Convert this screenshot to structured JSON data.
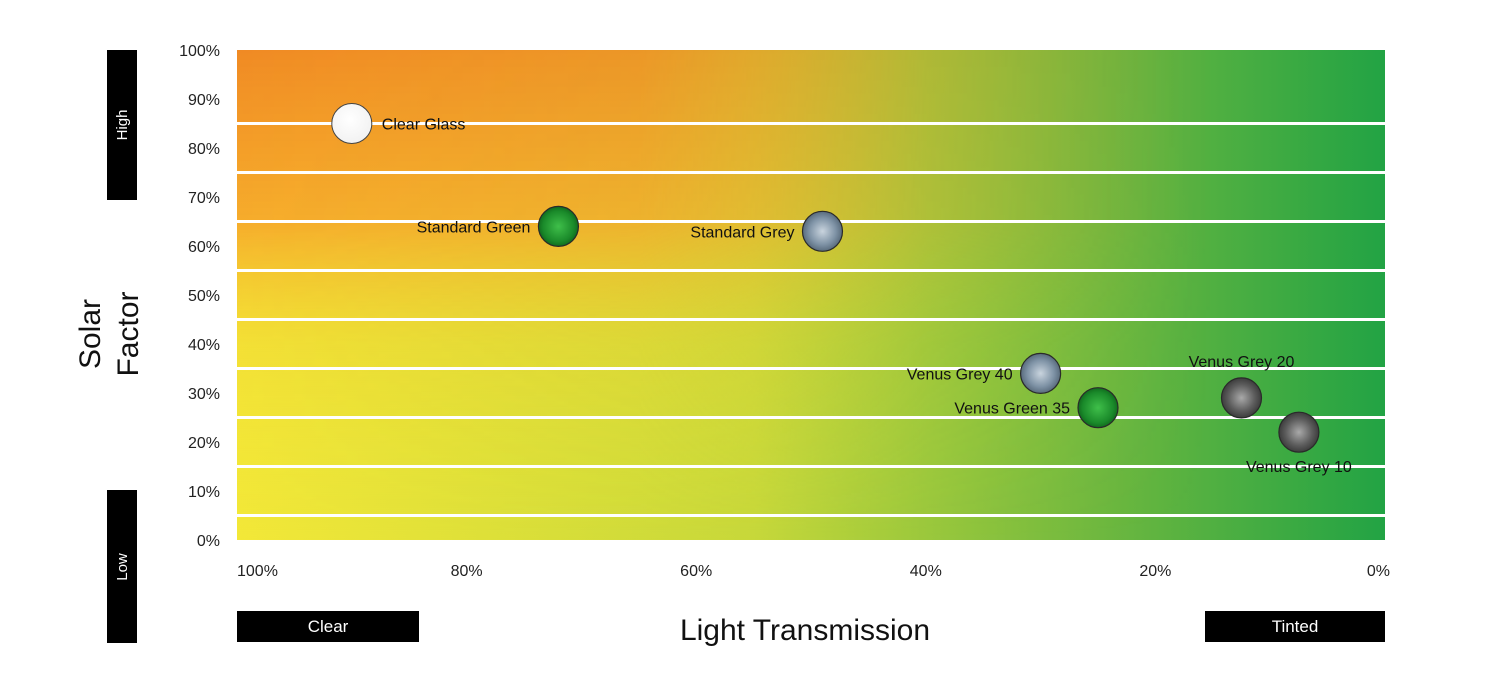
{
  "chart_data": {
    "type": "scatter",
    "xlabel": "Light Transmission",
    "ylabel_line1": "Solar",
    "ylabel_line2": "Factor",
    "x_reversed": true,
    "xlim": [
      0,
      100
    ],
    "ylim": [
      0,
      100
    ],
    "x_ticks": [
      {
        "value": 100,
        "label": "100%"
      },
      {
        "value": 80,
        "label": "80%"
      },
      {
        "value": 60,
        "label": "60%"
      },
      {
        "value": 40,
        "label": "40%"
      },
      {
        "value": 20,
        "label": "20%"
      },
      {
        "value": 0,
        "label": "0%"
      }
    ],
    "y_ticks": [
      {
        "value": 100,
        "label": "100%"
      },
      {
        "value": 90,
        "label": "90%"
      },
      {
        "value": 80,
        "label": "80%"
      },
      {
        "value": 70,
        "label": "70%"
      },
      {
        "value": 60,
        "label": "60%"
      },
      {
        "value": 50,
        "label": "50%"
      },
      {
        "value": 40,
        "label": "40%"
      },
      {
        "value": 30,
        "label": "30%"
      },
      {
        "value": 20,
        "label": "20%"
      },
      {
        "value": 10,
        "label": "10%"
      },
      {
        "value": 0,
        "label": "0%"
      }
    ],
    "points": [
      {
        "label": "Clear Glass",
        "x": 90,
        "y": 85,
        "fill": "white",
        "label_pos": "right"
      },
      {
        "label": "Standard Green",
        "x": 72,
        "y": 64,
        "fill": "green",
        "label_pos": "left"
      },
      {
        "label": "Standard Grey",
        "x": 49,
        "y": 63,
        "fill": "bluegrey",
        "label_pos": "left"
      },
      {
        "label": "Venus Grey 40",
        "x": 30,
        "y": 34,
        "fill": "bluegrey",
        "label_pos": "left"
      },
      {
        "label": "Venus Green 35",
        "x": 25,
        "y": 27,
        "fill": "green",
        "label_pos": "left"
      },
      {
        "label": "Venus Grey 20",
        "x": 12.5,
        "y": 29,
        "fill": "darkgrey",
        "label_pos": "above"
      },
      {
        "label": "Venus Grey 10",
        "x": 7.5,
        "y": 22,
        "fill": "darkgrey",
        "label_pos": "below"
      }
    ],
    "side_labels": {
      "high": "High",
      "low": "Low",
      "clear": "Clear",
      "tinted": "Tinted"
    },
    "colors": {
      "warm_top_left": "#f08a24",
      "warm_mid_left": "#f7b32b",
      "yellow_bottom_left": "#f2e936",
      "green_right": "#22a344",
      "band_lines": "#ffffff",
      "label_bars": "#000000"
    },
    "grid": true
  }
}
